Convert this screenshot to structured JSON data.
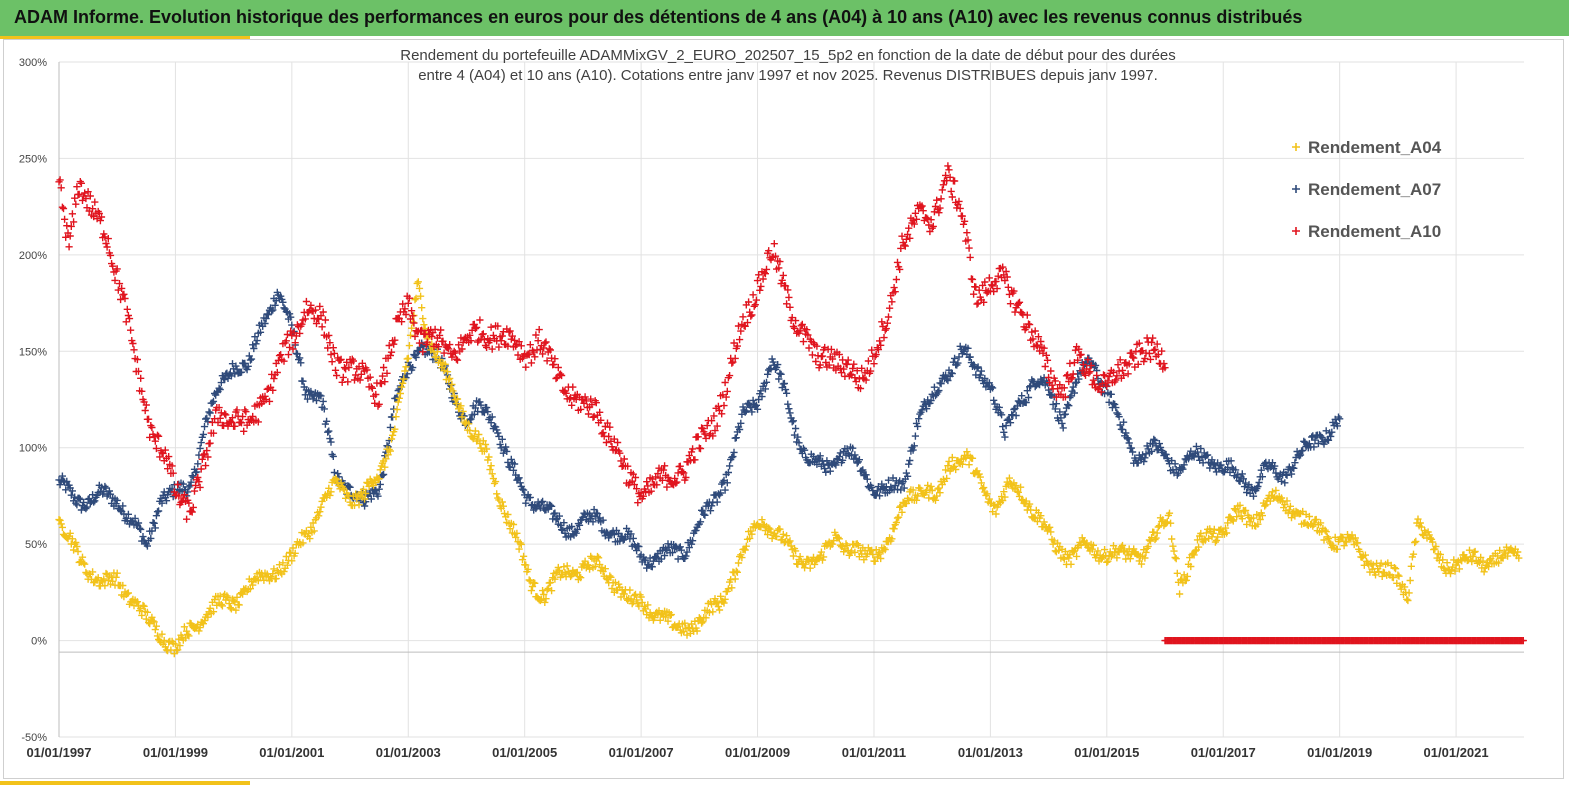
{
  "header": {
    "title": "ADAM Informe. Evolution historique des performances en euros pour des détentions de 4 ans (A04) à 10 ans (A10) avec les revenus connus distribués"
  },
  "colors": {
    "banner": "#6cc167",
    "accent": "#f2c21a",
    "A04": "#f2c21a",
    "A07": "#2f4a7a",
    "A10": "#e0141e"
  },
  "chart_data": {
    "type": "scatter",
    "marker": "plus",
    "title_line1": "Rendement du portefeuille ADAMMixGV_2_EURO_202507_15_5p2 en fonction de la date de début pour des durées",
    "title_line2": "entre 4 (A04) et 10 ans (A10). Cotations entre janv 1997 et nov 2025. Revenus DISTRIBUES depuis janv 1997.",
    "xlabel": "",
    "ylabel": "",
    "xlim": [
      "1997-01-01",
      "2022-03-01"
    ],
    "ylim": [
      -50,
      300
    ],
    "y_ticks": [
      -50,
      0,
      50,
      100,
      150,
      200,
      250,
      300
    ],
    "y_tick_labels": [
      "-50%",
      "0%",
      "50%",
      "100%",
      "150%",
      "200%",
      "250%",
      "300%"
    ],
    "x_ticks": [
      "1997-01-01",
      "1999-01-01",
      "2001-01-01",
      "2003-01-01",
      "2005-01-01",
      "2007-01-01",
      "2009-01-01",
      "2011-01-01",
      "2013-01-01",
      "2015-01-01",
      "2017-01-01",
      "2019-01-01",
      "2021-01-01"
    ],
    "x_tick_labels": [
      "01/01/1997",
      "01/01/1999",
      "01/01/2001",
      "01/01/2003",
      "01/01/2005",
      "01/01/2007",
      "01/01/2009",
      "01/01/2011",
      "01/01/2013",
      "01/01/2015",
      "01/01/2017",
      "01/01/2019",
      "01/01/2021"
    ],
    "grid": true,
    "legend_position": "top-right",
    "series": [
      {
        "name": "Rendement_A04",
        "color": "#f2c21a",
        "end": "2022-02-01",
        "points": [
          [
            "1997-01",
            60
          ],
          [
            "1997-04",
            48
          ],
          [
            "1997-07",
            38
          ],
          [
            "1997-10",
            28
          ],
          [
            "1998-01",
            32
          ],
          [
            "1998-04",
            22
          ],
          [
            "1998-07",
            10
          ],
          [
            "1998-10",
            5
          ],
          [
            "1999-01",
            -5
          ],
          [
            "1999-04",
            5
          ],
          [
            "1999-07",
            15
          ],
          [
            "1999-10",
            18
          ],
          [
            "2000-01",
            20
          ],
          [
            "2000-04",
            28
          ],
          [
            "2000-07",
            32
          ],
          [
            "2000-10",
            38
          ],
          [
            "2001-01",
            42
          ],
          [
            "2001-04",
            55
          ],
          [
            "2001-07",
            70
          ],
          [
            "2001-10",
            80
          ],
          [
            "2002-01",
            75
          ],
          [
            "2002-04",
            75
          ],
          [
            "2002-07",
            85
          ],
          [
            "2002-10",
            110
          ],
          [
            "2003-01",
            145
          ],
          [
            "2003-03",
            185
          ],
          [
            "2003-05",
            160
          ],
          [
            "2003-08",
            140
          ],
          [
            "2003-11",
            125
          ],
          [
            "2004-02",
            110
          ],
          [
            "2004-05",
            95
          ],
          [
            "2004-08",
            75
          ],
          [
            "2004-11",
            55
          ],
          [
            "2005-02",
            30
          ],
          [
            "2005-05",
            25
          ],
          [
            "2005-08",
            32
          ],
          [
            "2005-11",
            36
          ],
          [
            "2006-02",
            40
          ],
          [
            "2006-05",
            36
          ],
          [
            "2006-08",
            30
          ],
          [
            "2006-11",
            20
          ],
          [
            "2007-02",
            18
          ],
          [
            "2007-05",
            14
          ],
          [
            "2007-08",
            5
          ],
          [
            "2007-11",
            8
          ],
          [
            "2008-02",
            12
          ],
          [
            "2008-05",
            18
          ],
          [
            "2008-08",
            35
          ],
          [
            "2008-11",
            50
          ],
          [
            "2009-02",
            65
          ],
          [
            "2009-05",
            55
          ],
          [
            "2009-08",
            45
          ],
          [
            "2009-11",
            42
          ],
          [
            "2010-02",
            40
          ],
          [
            "2010-05",
            55
          ],
          [
            "2010-08",
            48
          ],
          [
            "2010-11",
            42
          ],
          [
            "2011-02",
            48
          ],
          [
            "2011-05",
            55
          ],
          [
            "2011-08",
            75
          ],
          [
            "2011-11",
            80
          ],
          [
            "2012-02",
            72
          ],
          [
            "2012-05",
            95
          ],
          [
            "2012-08",
            95
          ],
          [
            "2012-11",
            80
          ],
          [
            "2013-02",
            70
          ],
          [
            "2013-05",
            80
          ],
          [
            "2013-08",
            75
          ],
          [
            "2013-11",
            65
          ],
          [
            "2014-02",
            48
          ],
          [
            "2014-05",
            45
          ],
          [
            "2014-08",
            48
          ],
          [
            "2014-11",
            45
          ],
          [
            "2015-02",
            48
          ],
          [
            "2015-05",
            42
          ],
          [
            "2015-08",
            45
          ],
          [
            "2015-11",
            55
          ],
          [
            "2016-02",
            62
          ],
          [
            "2016-04",
            30
          ],
          [
            "2016-07",
            45
          ],
          [
            "2016-10",
            55
          ],
          [
            "2017-01",
            58
          ],
          [
            "2017-04",
            65
          ],
          [
            "2017-07",
            62
          ],
          [
            "2017-10",
            72
          ],
          [
            "2018-01",
            72
          ],
          [
            "2018-04",
            68
          ],
          [
            "2018-07",
            60
          ],
          [
            "2018-10",
            55
          ],
          [
            "2019-01",
            52
          ],
          [
            "2019-04",
            48
          ],
          [
            "2019-07",
            42
          ],
          [
            "2019-10",
            35
          ],
          [
            "2020-01",
            32
          ],
          [
            "2020-03",
            25
          ],
          [
            "2020-05",
            60
          ],
          [
            "2020-08",
            48
          ],
          [
            "2020-11",
            40
          ],
          [
            "2021-02",
            38
          ],
          [
            "2021-05",
            44
          ],
          [
            "2021-08",
            40
          ],
          [
            "2021-11",
            42
          ],
          [
            "2022-02",
            47
          ]
        ]
      },
      {
        "name": "Rendement_A07",
        "color": "#2f4a7a",
        "end": "2019-01-01",
        "points": [
          [
            "1997-01",
            80
          ],
          [
            "1997-04",
            75
          ],
          [
            "1997-07",
            72
          ],
          [
            "1997-10",
            75
          ],
          [
            "1998-01",
            74
          ],
          [
            "1998-04",
            62
          ],
          [
            "1998-07",
            48
          ],
          [
            "1998-10",
            75
          ],
          [
            "1999-01",
            75
          ],
          [
            "1999-04",
            80
          ],
          [
            "1999-07",
            110
          ],
          [
            "1999-10",
            130
          ],
          [
            "2000-01",
            145
          ],
          [
            "2000-04",
            140
          ],
          [
            "2000-07",
            165
          ],
          [
            "2000-10",
            182
          ],
          [
            "2001-01",
            160
          ],
          [
            "2001-04",
            130
          ],
          [
            "2001-07",
            125
          ],
          [
            "2001-10",
            85
          ],
          [
            "2002-01",
            80
          ],
          [
            "2002-04",
            70
          ],
          [
            "2002-07",
            80
          ],
          [
            "2002-10",
            120
          ],
          [
            "2003-01",
            140
          ],
          [
            "2003-04",
            155
          ],
          [
            "2003-07",
            145
          ],
          [
            "2003-10",
            130
          ],
          [
            "2004-01",
            115
          ],
          [
            "2004-04",
            120
          ],
          [
            "2004-07",
            115
          ],
          [
            "2004-10",
            90
          ],
          [
            "2005-01",
            75
          ],
          [
            "2005-04",
            72
          ],
          [
            "2005-07",
            62
          ],
          [
            "2005-10",
            58
          ],
          [
            "2006-01",
            62
          ],
          [
            "2006-04",
            62
          ],
          [
            "2006-07",
            58
          ],
          [
            "2006-10",
            52
          ],
          [
            "2007-01",
            45
          ],
          [
            "2007-04",
            42
          ],
          [
            "2007-07",
            45
          ],
          [
            "2007-10",
            48
          ],
          [
            "2008-01",
            60
          ],
          [
            "2008-04",
            72
          ],
          [
            "2008-07",
            88
          ],
          [
            "2008-10",
            115
          ],
          [
            "2009-01",
            125
          ],
          [
            "2009-04",
            145
          ],
          [
            "2009-07",
            125
          ],
          [
            "2009-10",
            100
          ],
          [
            "2010-01",
            90
          ],
          [
            "2010-04",
            90
          ],
          [
            "2010-07",
            100
          ],
          [
            "2010-10",
            90
          ],
          [
            "2011-01",
            80
          ],
          [
            "2011-04",
            78
          ],
          [
            "2011-07",
            80
          ],
          [
            "2011-10",
            115
          ],
          [
            "2012-01",
            125
          ],
          [
            "2012-04",
            140
          ],
          [
            "2012-07",
            150
          ],
          [
            "2012-10",
            140
          ],
          [
            "2013-01",
            135
          ],
          [
            "2013-04",
            105
          ],
          [
            "2013-07",
            125
          ],
          [
            "2013-10",
            135
          ],
          [
            "2014-01",
            130
          ],
          [
            "2014-04",
            115
          ],
          [
            "2014-07",
            135
          ],
          [
            "2014-10",
            145
          ],
          [
            "2015-01",
            130
          ],
          [
            "2015-04",
            110
          ],
          [
            "2015-07",
            95
          ],
          [
            "2015-10",
            100
          ],
          [
            "2016-01",
            95
          ],
          [
            "2016-04",
            90
          ],
          [
            "2016-07",
            95
          ],
          [
            "2016-10",
            95
          ],
          [
            "2017-01",
            90
          ],
          [
            "2017-04",
            85
          ],
          [
            "2017-07",
            80
          ],
          [
            "2017-10",
            88
          ],
          [
            "2018-01",
            85
          ],
          [
            "2018-04",
            95
          ],
          [
            "2018-07",
            100
          ],
          [
            "2018-10",
            108
          ],
          [
            "2019-01",
            115
          ]
        ]
      },
      {
        "name": "Rendement_A10",
        "color": "#e0141e",
        "end": "2016-01-01",
        "zero_from": "2016-01-01",
        "zero_to": "2022-03-01",
        "points": [
          [
            "1997-01",
            235
          ],
          [
            "1997-03",
            205
          ],
          [
            "1997-05",
            240
          ],
          [
            "1997-08",
            220
          ],
          [
            "1997-11",
            210
          ],
          [
            "1998-02",
            180
          ],
          [
            "1998-05",
            140
          ],
          [
            "1998-08",
            110
          ],
          [
            "1998-11",
            95
          ],
          [
            "1999-01",
            75
          ],
          [
            "1999-04",
            70
          ],
          [
            "1999-07",
            90
          ],
          [
            "1999-10",
            120
          ],
          [
            "2000-01",
            115
          ],
          [
            "2000-04",
            110
          ],
          [
            "2000-07",
            125
          ],
          [
            "2000-10",
            140
          ],
          [
            "2001-01",
            155
          ],
          [
            "2001-04",
            175
          ],
          [
            "2001-07",
            165
          ],
          [
            "2001-10",
            145
          ],
          [
            "2002-01",
            140
          ],
          [
            "2002-04",
            135
          ],
          [
            "2002-07",
            130
          ],
          [
            "2002-10",
            155
          ],
          [
            "2003-01",
            175
          ],
          [
            "2003-04",
            155
          ],
          [
            "2003-07",
            155
          ],
          [
            "2003-10",
            150
          ],
          [
            "2004-01",
            155
          ],
          [
            "2004-04",
            160
          ],
          [
            "2004-07",
            160
          ],
          [
            "2004-10",
            155
          ],
          [
            "2005-01",
            150
          ],
          [
            "2005-04",
            155
          ],
          [
            "2005-07",
            140
          ],
          [
            "2005-10",
            130
          ],
          [
            "2006-01",
            120
          ],
          [
            "2006-04",
            120
          ],
          [
            "2006-07",
            105
          ],
          [
            "2006-10",
            85
          ],
          [
            "2007-01",
            78
          ],
          [
            "2007-04",
            80
          ],
          [
            "2007-07",
            85
          ],
          [
            "2007-10",
            90
          ],
          [
            "2008-01",
            100
          ],
          [
            "2008-04",
            115
          ],
          [
            "2008-07",
            135
          ],
          [
            "2008-10",
            165
          ],
          [
            "2009-01",
            185
          ],
          [
            "2009-04",
            200
          ],
          [
            "2009-07",
            180
          ],
          [
            "2009-10",
            160
          ],
          [
            "2010-01",
            145
          ],
          [
            "2010-04",
            150
          ],
          [
            "2010-07",
            140
          ],
          [
            "2010-10",
            135
          ],
          [
            "2011-01",
            150
          ],
          [
            "2011-04",
            165
          ],
          [
            "2011-07",
            210
          ],
          [
            "2011-10",
            220
          ],
          [
            "2012-01",
            215
          ],
          [
            "2012-04",
            245
          ],
          [
            "2012-07",
            220
          ],
          [
            "2012-10",
            180
          ],
          [
            "2013-01",
            185
          ],
          [
            "2013-04",
            185
          ],
          [
            "2013-07",
            175
          ],
          [
            "2013-10",
            155
          ],
          [
            "2014-01",
            140
          ],
          [
            "2014-04",
            130
          ],
          [
            "2014-07",
            145
          ],
          [
            "2014-10",
            140
          ],
          [
            "2015-01",
            130
          ],
          [
            "2015-04",
            140
          ],
          [
            "2015-07",
            150
          ],
          [
            "2015-10",
            148
          ],
          [
            "2016-01",
            148
          ]
        ]
      }
    ]
  }
}
